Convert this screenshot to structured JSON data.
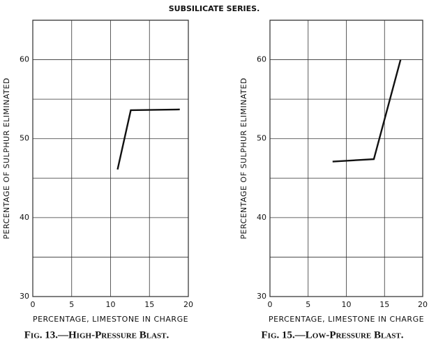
{
  "title": "SUBSILICATE SERIES.",
  "chart_data": [
    {
      "type": "line",
      "caption": "Fig. 13.—High-Pressure Blast.",
      "xlabel": "PERCENTAGE, LIMESTONE IN CHARGE",
      "ylabel": "PERCENTAGE OF SULPHUR ELIMINATED",
      "xlim": [
        0,
        20
      ],
      "ylim": [
        30,
        65
      ],
      "xticks": [
        0,
        5,
        10,
        15,
        20
      ],
      "yticks": [
        30,
        40,
        50,
        60
      ],
      "yminor": [
        35,
        45,
        55
      ],
      "grid": true,
      "series": [
        {
          "color": "#111111",
          "x": [
            10.9,
            12.6,
            18.9
          ],
          "values": [
            46.1,
            53.6,
            53.7
          ]
        }
      ]
    },
    {
      "type": "line",
      "caption": "Fig. 15.—Low-Pressure Blast.",
      "xlabel": "PERCENTAGE, LIMESTONE IN CHARGE",
      "ylabel": "PERCENTAGE OF SULPHUR ELIMINATED",
      "xlim": [
        0,
        20
      ],
      "ylim": [
        30,
        65
      ],
      "xticks": [
        0,
        5,
        10,
        15,
        20
      ],
      "yticks": [
        30,
        40,
        50,
        60
      ],
      "yminor": [
        35,
        45,
        55
      ],
      "grid": true,
      "series": [
        {
          "color": "#111111",
          "x": [
            8.2,
            13.6,
            17.1
          ],
          "values": [
            47.1,
            47.4,
            60.0
          ]
        }
      ]
    }
  ]
}
